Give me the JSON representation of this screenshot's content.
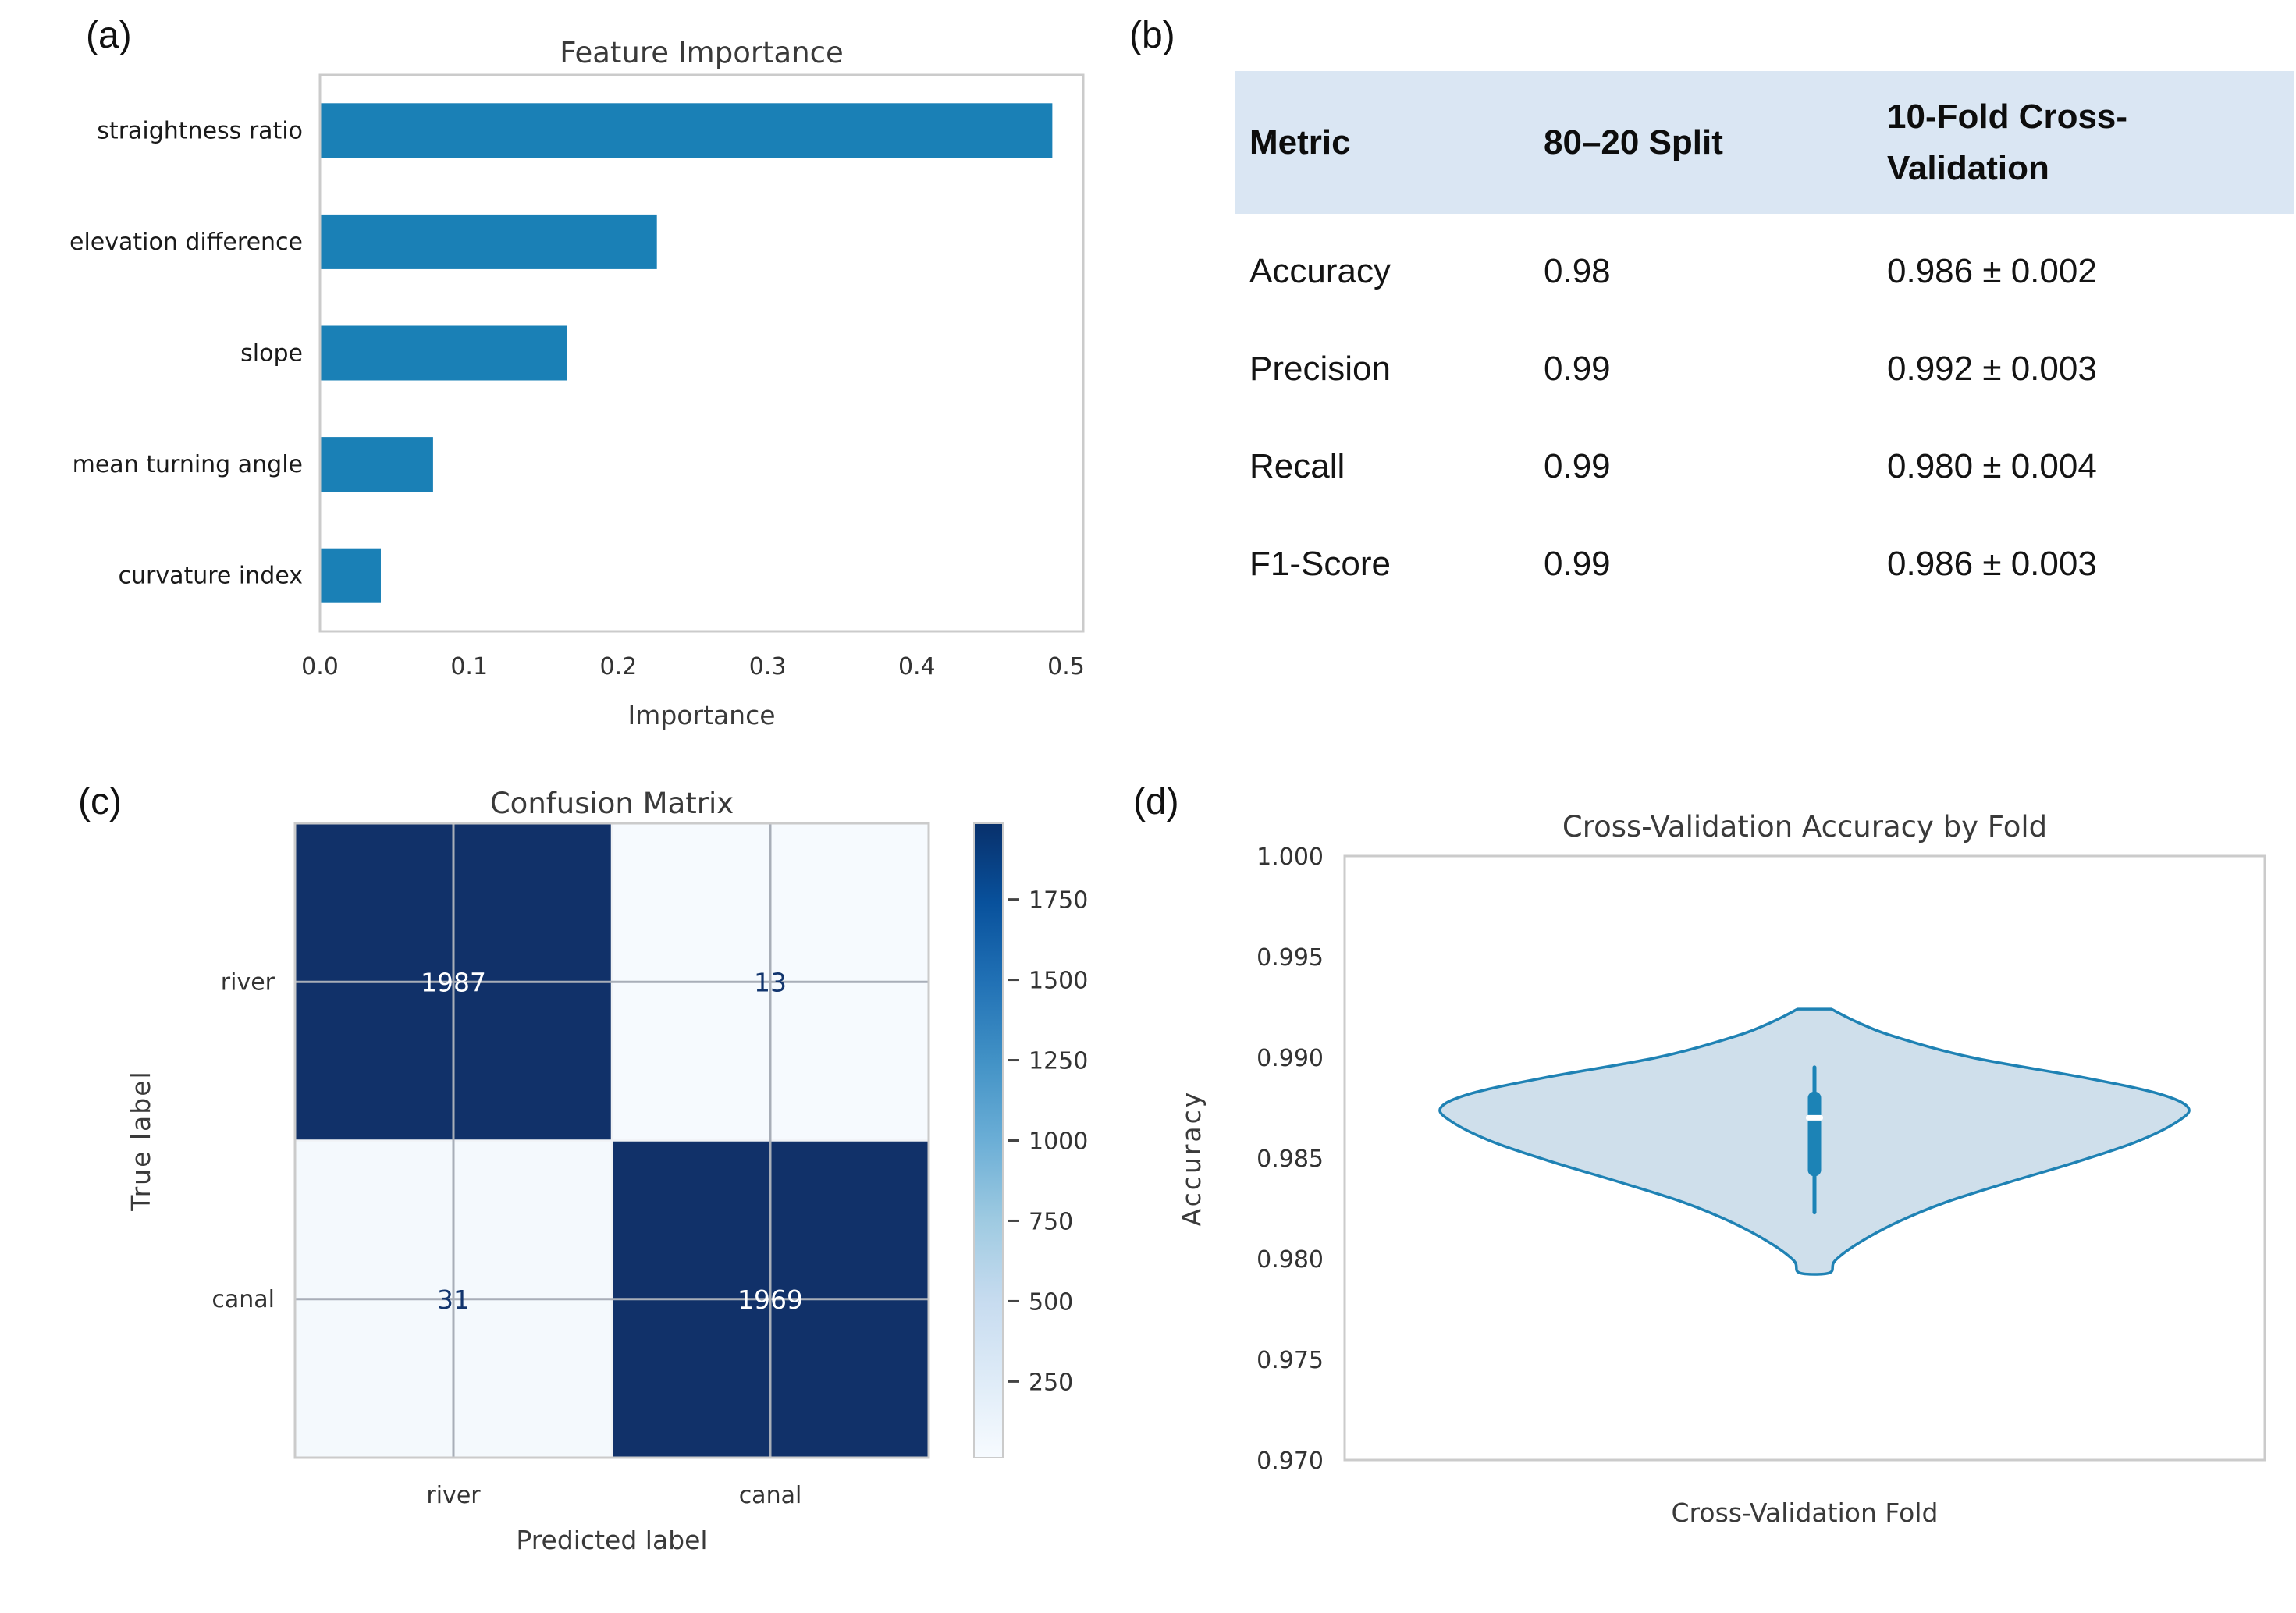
{
  "panels": {
    "a": {
      "tag": "(a)"
    },
    "b": {
      "tag": "(b)"
    },
    "c": {
      "tag": "(c)"
    },
    "d": {
      "tag": "(d)"
    }
  },
  "chart_data": [
    {
      "id": "feature_importance",
      "type": "bar",
      "orientation": "horizontal",
      "title": "Feature Importance",
      "xlabel": "Importance",
      "categories": [
        "straightness ratio",
        "elevation difference",
        "slope",
        "mean turning angle",
        "curvature index"
      ],
      "values": [
        0.49,
        0.225,
        0.165,
        0.075,
        0.04
      ],
      "xlim": [
        0.0,
        0.511
      ],
      "xticks": [
        0.0,
        0.1,
        0.2,
        0.3,
        0.4,
        0.5
      ],
      "grid": false,
      "bar_color": "#1a80b6",
      "axis_border_color": "#cbcbcb"
    },
    {
      "id": "metrics_table",
      "type": "table",
      "columns": [
        "Metric",
        "80–20 Split",
        "10-Fold Cross-\nValidation"
      ],
      "rows": [
        [
          "Accuracy",
          "0.98",
          "0.986 ± 0.002"
        ],
        [
          "Precision",
          "0.99",
          "0.992 ± 0.003"
        ],
        [
          "Recall",
          "0.99",
          "0.980 ± 0.004"
        ],
        [
          "F1-Score",
          "0.99",
          "0.986 ± 0.003"
        ]
      ],
      "header_bg": "#dae6f3"
    },
    {
      "id": "confusion_matrix",
      "type": "heatmap",
      "title": "Confusion Matrix",
      "xlabel": "Predicted label",
      "ylabel": "True label",
      "xticklabels": [
        "river",
        "canal"
      ],
      "yticklabels": [
        "river",
        "canal"
      ],
      "values": [
        [
          1987,
          13
        ],
        [
          31,
          1969
        ]
      ],
      "vmin": 13,
      "vmax": 1987,
      "colormap": "Blues",
      "colorbar_ticks": [
        250,
        500,
        750,
        1000,
        1250,
        1500,
        1750
      ],
      "cell_colors": [
        [
          "#113169",
          "#f6fafe"
        ],
        [
          "#f4f9fd",
          "#113169"
        ]
      ],
      "cell_text_colors": [
        [
          "#ffffff",
          "#12356e"
        ],
        [
          "#12356e",
          "#ffffff"
        ]
      ],
      "gridline_color": "#a8aeb8",
      "cell_divider_color": "#f0f2f5"
    },
    {
      "id": "cv_accuracy_violin",
      "type": "violin",
      "title": "Cross-Validation Accuracy by Fold",
      "xlabel": "Cross-Validation Fold",
      "ylabel": "Accuracy",
      "ylim": [
        0.97,
        1.0
      ],
      "yticks": [
        1.0,
        0.995,
        0.99,
        0.985,
        0.98,
        0.975,
        0.97
      ],
      "stats": {
        "min": 0.9793,
        "whisker_low": 0.9823,
        "q1": 0.9841,
        "median": 0.987,
        "q3": 0.9883,
        "whisker_high": 0.9895,
        "max": 0.9924
      },
      "profile": [
        [
          0.9924,
          0.045
        ],
        [
          0.9917,
          0.12
        ],
        [
          0.991,
          0.22
        ],
        [
          0.99,
          0.42
        ],
        [
          0.989,
          0.72
        ],
        [
          0.9882,
          0.92
        ],
        [
          0.9875,
          1.0
        ],
        [
          0.9868,
          0.97
        ],
        [
          0.9858,
          0.86
        ],
        [
          0.9848,
          0.7
        ],
        [
          0.9838,
          0.52
        ],
        [
          0.9828,
          0.35
        ],
        [
          0.9818,
          0.22
        ],
        [
          0.9808,
          0.12
        ],
        [
          0.9799,
          0.055
        ],
        [
          0.9793,
          0.04
        ]
      ],
      "fill_color": "#cfdfeb",
      "stroke_color": "#1f82b4",
      "box_color": "#1c83b6",
      "median_color": "#ffffff"
    }
  ]
}
